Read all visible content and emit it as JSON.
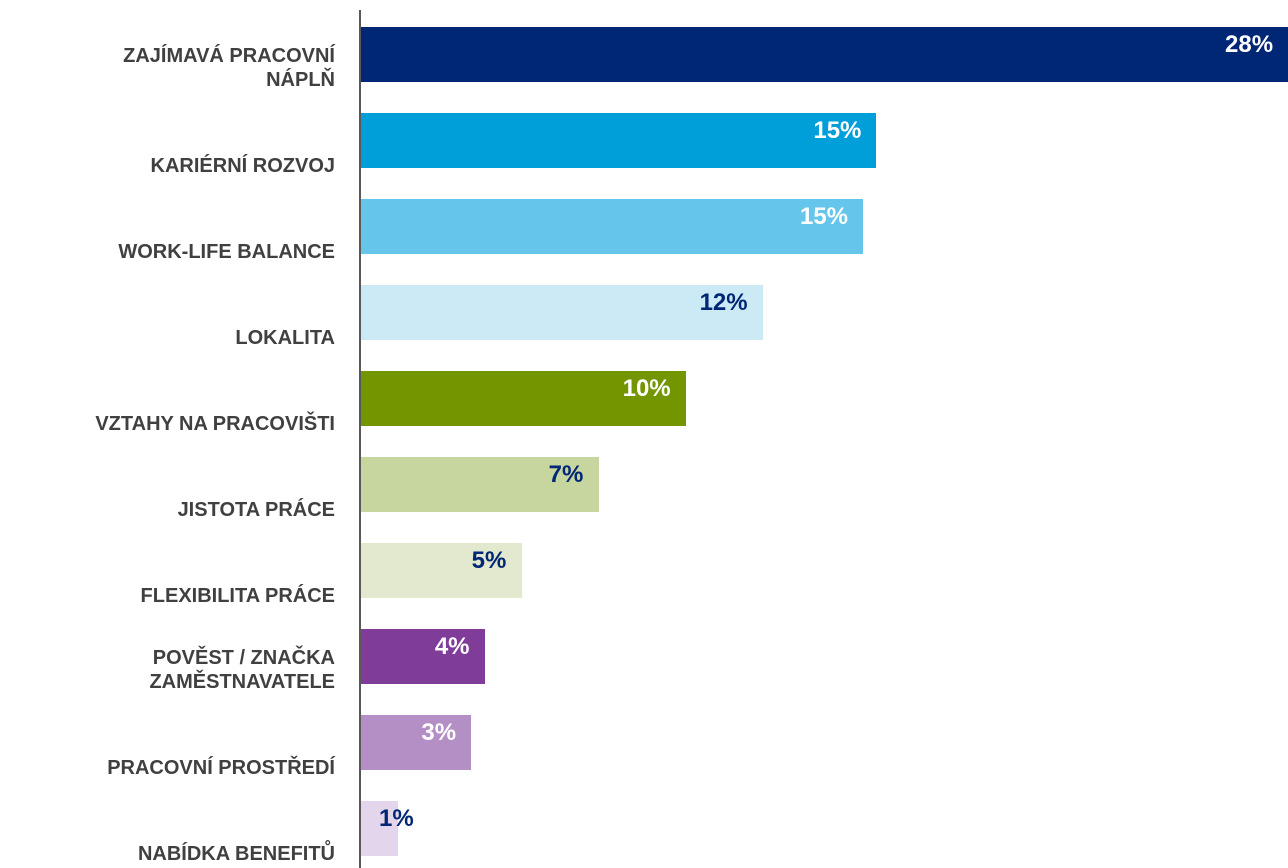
{
  "chart_data": {
    "type": "barh",
    "categories": [
      "ZAJÍMAVÁ PRACOVNÍ\nNÁPLŇ",
      "KARIÉRNÍ ROZVOJ",
      "WORK-LIFE BALANCE",
      "LOKALITA",
      "VZTAHY NA PRACOVIŠTI",
      "JISTOTA PRÁCE",
      "FLEXIBILITA PRÁCE",
      "POVĚST / ZNAČKA\nZAMĚSTNAVATELE",
      "PRACOVNÍ PROSTŘEDÍ",
      "NABÍDKA BENEFITŮ"
    ],
    "values": [
      27.7,
      15.4,
      15,
      12,
      9.7,
      7.1,
      4.8,
      3.7,
      3.3,
      1.1
    ],
    "value_labels": [
      "28%",
      "15%",
      "15%",
      "12%",
      "10%",
      "7%",
      "5%",
      "4%",
      "3%",
      "1%"
    ],
    "colors": [
      "#002776",
      "#009fda",
      "#66c5ea",
      "#cceaf6",
      "#739600",
      "#c7d59f",
      "#e3e9cf",
      "#7f3c98",
      "#b38fc6",
      "#e3d6ec"
    ],
    "value_label_colors": [
      "#ffffff",
      "#ffffff",
      "#ffffff",
      "#002776",
      "#ffffff",
      "#002776",
      "#002776",
      "#ffffff",
      "#ffffff",
      "#002776"
    ],
    "xlim": [
      0,
      27.7
    ]
  }
}
